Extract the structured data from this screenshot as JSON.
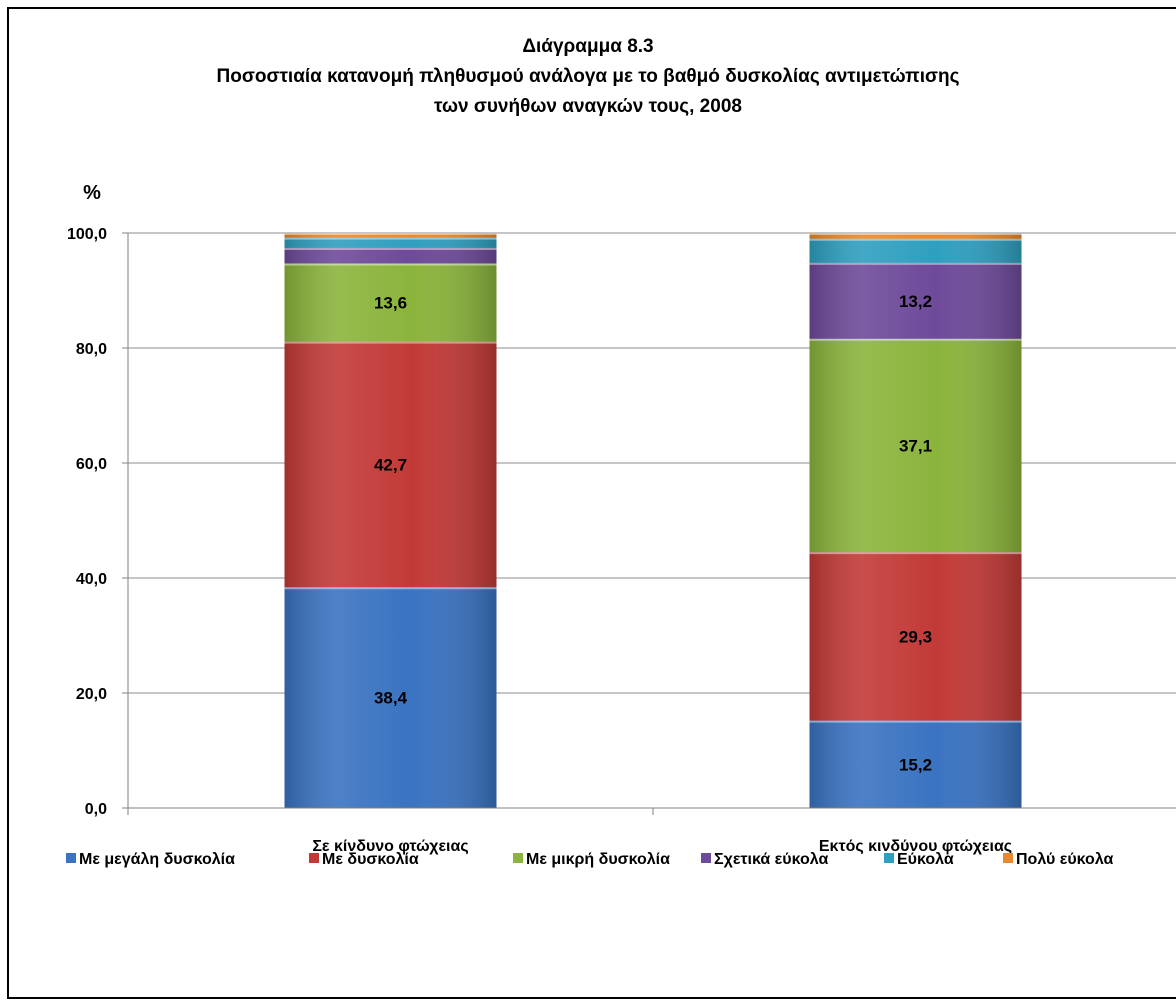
{
  "chart_data": {
    "type": "bar",
    "stacked": true,
    "title_lines": [
      "Διάγραμμα 8.3",
      "Ποσοστιαία κατανομή πληθυσμού ανάλογα με το βαθμό δυσκολίας αντιμετώπισης",
      "των συνήθων αναγκών τους, 2008"
    ],
    "y_unit": "%",
    "ylim": [
      0,
      100
    ],
    "y_ticks": [
      0,
      20,
      40,
      60,
      80,
      100
    ],
    "y_tick_labels": [
      "0,0",
      "20,0",
      "40,0",
      "60,0",
      "80,0",
      "100,0"
    ],
    "grid": true,
    "legend_position": "bottom",
    "categories": [
      "Σε κίνδυνο φτώχειας",
      "Εκτός κινδύνου φτώχειας"
    ],
    "series": [
      {
        "name": "Με μεγάλη δυσκολία",
        "color": "#3a73c1",
        "values": [
          38.4,
          15.2
        ],
        "labels": [
          "38,4",
          "15,2"
        ]
      },
      {
        "name": "Με δυσκολία",
        "color": "#c23a37",
        "values": [
          42.7,
          29.3
        ],
        "labels": [
          "42,7",
          "29,3"
        ]
      },
      {
        "name": "Με μικρή δυσκολία",
        "color": "#8bb43c",
        "values": [
          13.6,
          37.1
        ],
        "labels": [
          "13,6",
          "37,1"
        ]
      },
      {
        "name": "Σχετικά εύκολα",
        "color": "#6e4a9a",
        "values": [
          2.7,
          13.2
        ],
        "labels": [
          "",
          "13,2"
        ]
      },
      {
        "name": "Εύκολα",
        "color": "#2f9fbf",
        "values": [
          1.8,
          4.2
        ],
        "labels": [
          "",
          ""
        ]
      },
      {
        "name": "Πολύ εύκολα",
        "color": "#e8892f",
        "values": [
          0.8,
          1.0
        ],
        "labels": [
          "",
          ""
        ]
      }
    ]
  }
}
